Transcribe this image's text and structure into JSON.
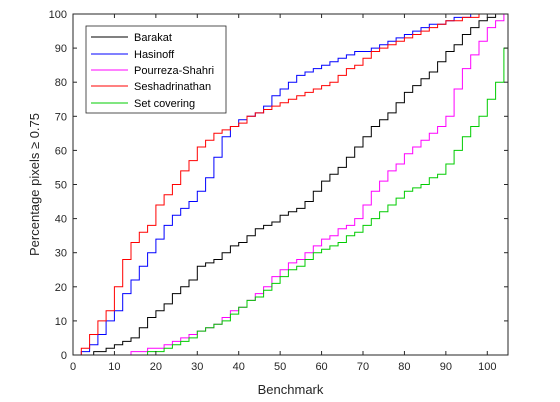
{
  "chart_data": {
    "type": "line",
    "title": "",
    "xlabel": "Benchmark",
    "ylabel": "Percentage pixels ≥ 0.75",
    "xlim": [
      0,
      105
    ],
    "ylim": [
      0,
      100
    ],
    "xticks": [
      0,
      10,
      20,
      30,
      40,
      50,
      60,
      70,
      80,
      90,
      100
    ],
    "yticks": [
      0,
      10,
      20,
      30,
      40,
      50,
      60,
      70,
      80,
      90,
      100
    ],
    "grid": false,
    "legend_position": "top-left",
    "series": [
      {
        "name": "Barakat",
        "color": "#000000",
        "x": [
          0,
          2,
          5,
          8,
          10,
          12,
          14,
          16,
          18,
          20,
          22,
          24,
          26,
          28,
          30,
          32,
          34,
          36,
          38,
          40,
          42,
          44,
          46,
          48,
          50,
          52,
          54,
          56,
          58,
          60,
          62,
          64,
          66,
          68,
          70,
          72,
          74,
          76,
          78,
          80,
          82,
          84,
          86,
          88,
          90,
          92,
          94,
          96,
          98,
          100,
          102,
          104,
          105
        ],
        "y": [
          0,
          0,
          1,
          2,
          3,
          4,
          5,
          8,
          11,
          13,
          15,
          18,
          20,
          22,
          26,
          27,
          28,
          30,
          32,
          33,
          35,
          37,
          38,
          39,
          41,
          42,
          43,
          45,
          48,
          51,
          53,
          55,
          58,
          61,
          64,
          67,
          69,
          71,
          74,
          77,
          79,
          81,
          83,
          86,
          89,
          91,
          94,
          96,
          98,
          99,
          100,
          100,
          100
        ]
      },
      {
        "name": "Hasinoff",
        "color": "#0000ff",
        "x": [
          0,
          2,
          4,
          6,
          8,
          10,
          12,
          14,
          16,
          18,
          20,
          22,
          24,
          26,
          28,
          30,
          32,
          34,
          36,
          38,
          40,
          42,
          44,
          46,
          48,
          50,
          52,
          54,
          56,
          58,
          60,
          62,
          64,
          66,
          68,
          70,
          72,
          74,
          76,
          78,
          80,
          82,
          84,
          86,
          88,
          90,
          92,
          94,
          96,
          98,
          100,
          102,
          104,
          105
        ],
        "y": [
          0,
          1,
          3,
          6,
          10,
          13,
          18,
          22,
          26,
          30,
          34,
          38,
          41,
          43,
          45,
          48,
          52,
          58,
          64,
          67,
          69,
          70,
          71,
          73,
          76,
          78,
          80,
          82,
          83,
          84,
          85,
          86,
          87,
          88,
          89,
          89,
          90,
          91,
          92,
          93,
          94,
          95,
          96,
          97,
          97,
          98,
          99,
          99,
          100,
          100,
          100,
          100,
          100,
          100
        ]
      },
      {
        "name": "Pourreza-Shahri",
        "color": "#ff00ff",
        "x": [
          0,
          10,
          14,
          18,
          20,
          22,
          24,
          26,
          28,
          30,
          32,
          34,
          36,
          38,
          40,
          42,
          44,
          46,
          48,
          50,
          52,
          54,
          56,
          58,
          60,
          62,
          64,
          66,
          68,
          70,
          72,
          74,
          76,
          78,
          80,
          82,
          84,
          86,
          88,
          90,
          92,
          94,
          96,
          98,
          100,
          102,
          104,
          105
        ],
        "y": [
          0,
          0,
          1,
          2,
          2,
          3,
          4,
          5,
          6,
          7,
          8,
          9,
          11,
          13,
          14,
          16,
          18,
          20,
          23,
          25,
          27,
          28,
          30,
          32,
          34,
          35,
          37,
          38,
          40,
          44,
          48,
          51,
          54,
          56,
          59,
          61,
          63,
          65,
          67,
          70,
          78,
          84,
          88,
          92,
          96,
          98,
          100,
          100
        ]
      },
      {
        "name": "Seshadrinathan",
        "color": "#ff0000",
        "x": [
          0,
          2,
          4,
          6,
          8,
          10,
          12,
          14,
          16,
          18,
          20,
          22,
          24,
          26,
          28,
          30,
          32,
          34,
          36,
          38,
          40,
          42,
          44,
          46,
          48,
          50,
          52,
          54,
          56,
          58,
          60,
          62,
          64,
          66,
          68,
          70,
          72,
          74,
          76,
          78,
          80,
          82,
          84,
          86,
          88,
          90,
          92,
          94,
          96,
          98,
          100,
          102,
          104,
          105
        ],
        "y": [
          0,
          2,
          6,
          10,
          13,
          20,
          28,
          33,
          36,
          38,
          44,
          47,
          50,
          54,
          57,
          61,
          63,
          65,
          66,
          67,
          68,
          70,
          71,
          72,
          73,
          74,
          75,
          76,
          77,
          78,
          79,
          80,
          82,
          84,
          85,
          87,
          89,
          90,
          91,
          92,
          93,
          94,
          95,
          96,
          97,
          98,
          98,
          99,
          99,
          100,
          100,
          100,
          100,
          100
        ]
      },
      {
        "name": "Set covering",
        "color": "#00cc00",
        "x": [
          0,
          14,
          18,
          20,
          22,
          24,
          26,
          28,
          30,
          32,
          34,
          36,
          38,
          40,
          42,
          44,
          46,
          48,
          50,
          52,
          54,
          56,
          58,
          60,
          62,
          64,
          66,
          68,
          70,
          72,
          74,
          76,
          78,
          80,
          82,
          84,
          86,
          88,
          90,
          92,
          94,
          96,
          98,
          100,
          102,
          104,
          105
        ],
        "y": [
          0,
          0,
          1,
          1,
          2,
          3,
          4,
          5,
          7,
          8,
          9,
          10,
          12,
          14,
          16,
          17,
          19,
          21,
          23,
          25,
          26,
          28,
          30,
          31,
          32,
          33,
          35,
          36,
          38,
          40,
          42,
          44,
          46,
          48,
          49,
          50,
          52,
          53,
          56,
          60,
          64,
          67,
          70,
          75,
          80,
          90,
          100
        ]
      }
    ]
  }
}
